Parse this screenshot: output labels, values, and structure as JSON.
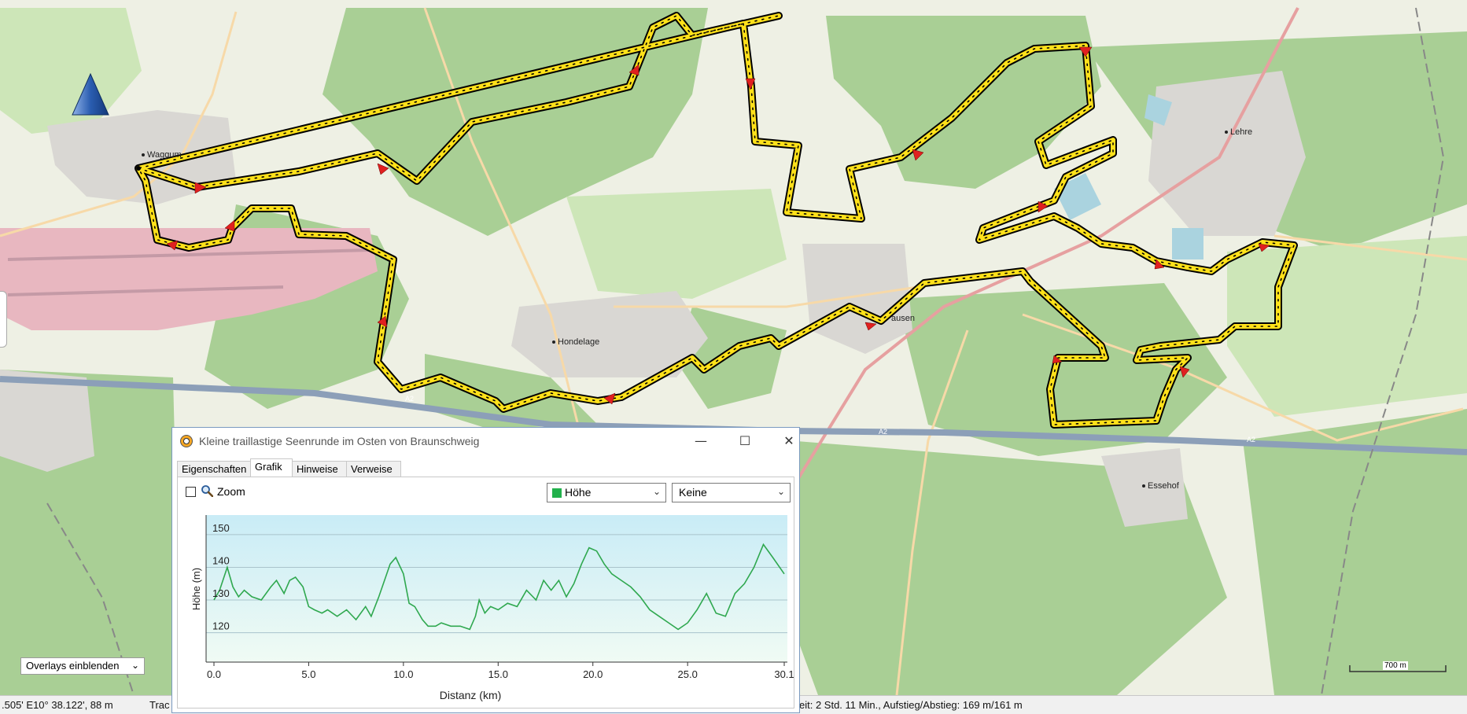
{
  "map": {
    "places": [
      {
        "name": "Waggum"
      },
      {
        "name": "Lehre"
      },
      {
        "name": "Hondelage"
      },
      {
        "name": "ausen"
      },
      {
        "name": "Essehof"
      }
    ],
    "road_labels": [
      "A2",
      "A2",
      "A2"
    ],
    "overlays_label": "Overlays einblenden",
    "scale_label": "700 m",
    "colors": {
      "track": "#ffe11a",
      "forest": "#a9cf95",
      "farmland": "#eef0e4",
      "airport": "#e8b7c0",
      "motorway": "#8c9fb8",
      "route_arrow": "#e02020"
    }
  },
  "statusbar": {
    "coords": ".505' E10° 38.122', 88 m",
    "track": "Trac",
    "summary": "eit: 2 Std. 11 Min., Aufstieg/Abstieg: 169 m/161 m"
  },
  "dialog": {
    "title": "Kleine traillastige Seenrunde im Osten von Braunschweig",
    "tabs": [
      "Eigenschaften",
      "Grafik",
      "Hinweise",
      "Verweise"
    ],
    "active_tab": "Grafik",
    "zoom_label": "Zoom",
    "zoom_checked": false,
    "profile_select": "Höhe",
    "second_select": "Keine"
  },
  "chart_data": {
    "type": "area",
    "xlabel": "Distanz  (km)",
    "ylabel": "Höhe (m)",
    "xlim": [
      0,
      30.1
    ],
    "ylim": [
      111,
      156
    ],
    "xticks": [
      "0.0",
      "5.0",
      "10.0",
      "15.0",
      "20.0",
      "25.0",
      "30.1"
    ],
    "yticks": [
      "120",
      "130",
      "140",
      "150"
    ],
    "grid": true,
    "series": [
      {
        "color": "#2fa84f",
        "x": [
          0.0,
          0.3,
          0.7,
          1.0,
          1.3,
          1.6,
          2.0,
          2.5,
          3.0,
          3.3,
          3.7,
          4.0,
          4.3,
          4.7,
          5.0,
          5.3,
          5.7,
          6.0,
          6.5,
          7.0,
          7.5,
          8.0,
          8.3,
          8.7,
          9.0,
          9.3,
          9.6,
          10.0,
          10.3,
          10.6,
          11.0,
          11.3,
          11.7,
          12.0,
          12.5,
          13.0,
          13.5,
          13.8,
          14.0,
          14.3,
          14.6,
          15.0,
          15.5,
          16.0,
          16.5,
          17.0,
          17.4,
          17.8,
          18.2,
          18.6,
          19.0,
          19.4,
          19.8,
          20.2,
          20.6,
          21.0,
          21.5,
          22.0,
          22.5,
          23.0,
          23.5,
          24.0,
          24.5,
          25.0,
          25.5,
          26.0,
          26.5,
          27.0,
          27.5,
          28.0,
          28.5,
          29.0,
          29.5,
          30.1
        ],
        "y": [
          130,
          133,
          140,
          134,
          131,
          133,
          131,
          130,
          134,
          136,
          132,
          136,
          137,
          134,
          128,
          127,
          126,
          127,
          125,
          127,
          124,
          128,
          125,
          131,
          136,
          141,
          143,
          138,
          129,
          128,
          124,
          122,
          122,
          123,
          122,
          122,
          121,
          125,
          130,
          126,
          128,
          127,
          129,
          128,
          133,
          130,
          136,
          133,
          136,
          131,
          135,
          141,
          146,
          145,
          141,
          138,
          136,
          134,
          131,
          127,
          125,
          123,
          121,
          123,
          127,
          132,
          126,
          125,
          132,
          135,
          140,
          147,
          143,
          138
        ]
      }
    ]
  }
}
